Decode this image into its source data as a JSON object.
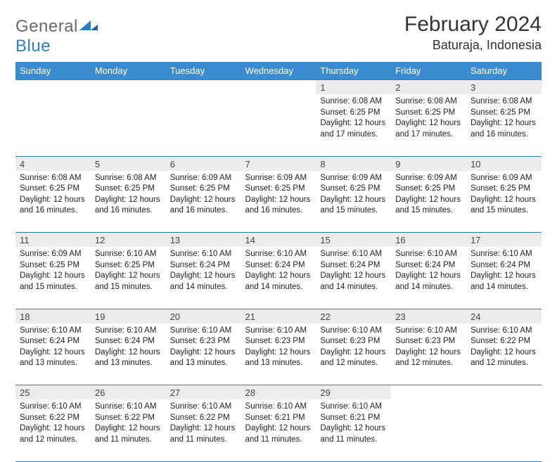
{
  "brand": {
    "name_gray": "General",
    "name_blue": "Blue"
  },
  "title": "February 2024",
  "location": "Baturaja, Indonesia",
  "colors": {
    "header_bg": "#3b8bd0",
    "header_text": "#ffffff",
    "rule": "#2a7fc4",
    "daynum_bg": "#ececec",
    "body_text": "#222222",
    "logo_gray": "#6a6a6a",
    "logo_blue": "#2a7fc4"
  },
  "weekdays": [
    "Sunday",
    "Monday",
    "Tuesday",
    "Wednesday",
    "Thursday",
    "Friday",
    "Saturday"
  ],
  "weeks": [
    {
      "days": [
        null,
        null,
        null,
        null,
        {
          "n": "1",
          "sunrise": "6:08 AM",
          "sunset": "6:25 PM",
          "daylight": "12 hours and 17 minutes."
        },
        {
          "n": "2",
          "sunrise": "6:08 AM",
          "sunset": "6:25 PM",
          "daylight": "12 hours and 17 minutes."
        },
        {
          "n": "3",
          "sunrise": "6:08 AM",
          "sunset": "6:25 PM",
          "daylight": "12 hours and 16 minutes."
        }
      ]
    },
    {
      "days": [
        {
          "n": "4",
          "sunrise": "6:08 AM",
          "sunset": "6:25 PM",
          "daylight": "12 hours and 16 minutes."
        },
        {
          "n": "5",
          "sunrise": "6:08 AM",
          "sunset": "6:25 PM",
          "daylight": "12 hours and 16 minutes."
        },
        {
          "n": "6",
          "sunrise": "6:09 AM",
          "sunset": "6:25 PM",
          "daylight": "12 hours and 16 minutes."
        },
        {
          "n": "7",
          "sunrise": "6:09 AM",
          "sunset": "6:25 PM",
          "daylight": "12 hours and 16 minutes."
        },
        {
          "n": "8",
          "sunrise": "6:09 AM",
          "sunset": "6:25 PM",
          "daylight": "12 hours and 15 minutes."
        },
        {
          "n": "9",
          "sunrise": "6:09 AM",
          "sunset": "6:25 PM",
          "daylight": "12 hours and 15 minutes."
        },
        {
          "n": "10",
          "sunrise": "6:09 AM",
          "sunset": "6:25 PM",
          "daylight": "12 hours and 15 minutes."
        }
      ]
    },
    {
      "days": [
        {
          "n": "11",
          "sunrise": "6:09 AM",
          "sunset": "6:25 PM",
          "daylight": "12 hours and 15 minutes."
        },
        {
          "n": "12",
          "sunrise": "6:10 AM",
          "sunset": "6:25 PM",
          "daylight": "12 hours and 15 minutes."
        },
        {
          "n": "13",
          "sunrise": "6:10 AM",
          "sunset": "6:24 PM",
          "daylight": "12 hours and 14 minutes."
        },
        {
          "n": "14",
          "sunrise": "6:10 AM",
          "sunset": "6:24 PM",
          "daylight": "12 hours and 14 minutes."
        },
        {
          "n": "15",
          "sunrise": "6:10 AM",
          "sunset": "6:24 PM",
          "daylight": "12 hours and 14 minutes."
        },
        {
          "n": "16",
          "sunrise": "6:10 AM",
          "sunset": "6:24 PM",
          "daylight": "12 hours and 14 minutes."
        },
        {
          "n": "17",
          "sunrise": "6:10 AM",
          "sunset": "6:24 PM",
          "daylight": "12 hours and 14 minutes."
        }
      ]
    },
    {
      "days": [
        {
          "n": "18",
          "sunrise": "6:10 AM",
          "sunset": "6:24 PM",
          "daylight": "12 hours and 13 minutes."
        },
        {
          "n": "19",
          "sunrise": "6:10 AM",
          "sunset": "6:24 PM",
          "daylight": "12 hours and 13 minutes."
        },
        {
          "n": "20",
          "sunrise": "6:10 AM",
          "sunset": "6:23 PM",
          "daylight": "12 hours and 13 minutes."
        },
        {
          "n": "21",
          "sunrise": "6:10 AM",
          "sunset": "6:23 PM",
          "daylight": "12 hours and 13 minutes."
        },
        {
          "n": "22",
          "sunrise": "6:10 AM",
          "sunset": "6:23 PM",
          "daylight": "12 hours and 12 minutes."
        },
        {
          "n": "23",
          "sunrise": "6:10 AM",
          "sunset": "6:23 PM",
          "daylight": "12 hours and 12 minutes."
        },
        {
          "n": "24",
          "sunrise": "6:10 AM",
          "sunset": "6:22 PM",
          "daylight": "12 hours and 12 minutes."
        }
      ]
    },
    {
      "days": [
        {
          "n": "25",
          "sunrise": "6:10 AM",
          "sunset": "6:22 PM",
          "daylight": "12 hours and 12 minutes."
        },
        {
          "n": "26",
          "sunrise": "6:10 AM",
          "sunset": "6:22 PM",
          "daylight": "12 hours and 11 minutes."
        },
        {
          "n": "27",
          "sunrise": "6:10 AM",
          "sunset": "6:22 PM",
          "daylight": "12 hours and 11 minutes."
        },
        {
          "n": "28",
          "sunrise": "6:10 AM",
          "sunset": "6:21 PM",
          "daylight": "12 hours and 11 minutes."
        },
        {
          "n": "29",
          "sunrise": "6:10 AM",
          "sunset": "6:21 PM",
          "daylight": "12 hours and 11 minutes."
        },
        null,
        null
      ]
    }
  ],
  "labels": {
    "sunrise": "Sunrise:",
    "sunset": "Sunset:",
    "daylight": "Daylight:"
  }
}
